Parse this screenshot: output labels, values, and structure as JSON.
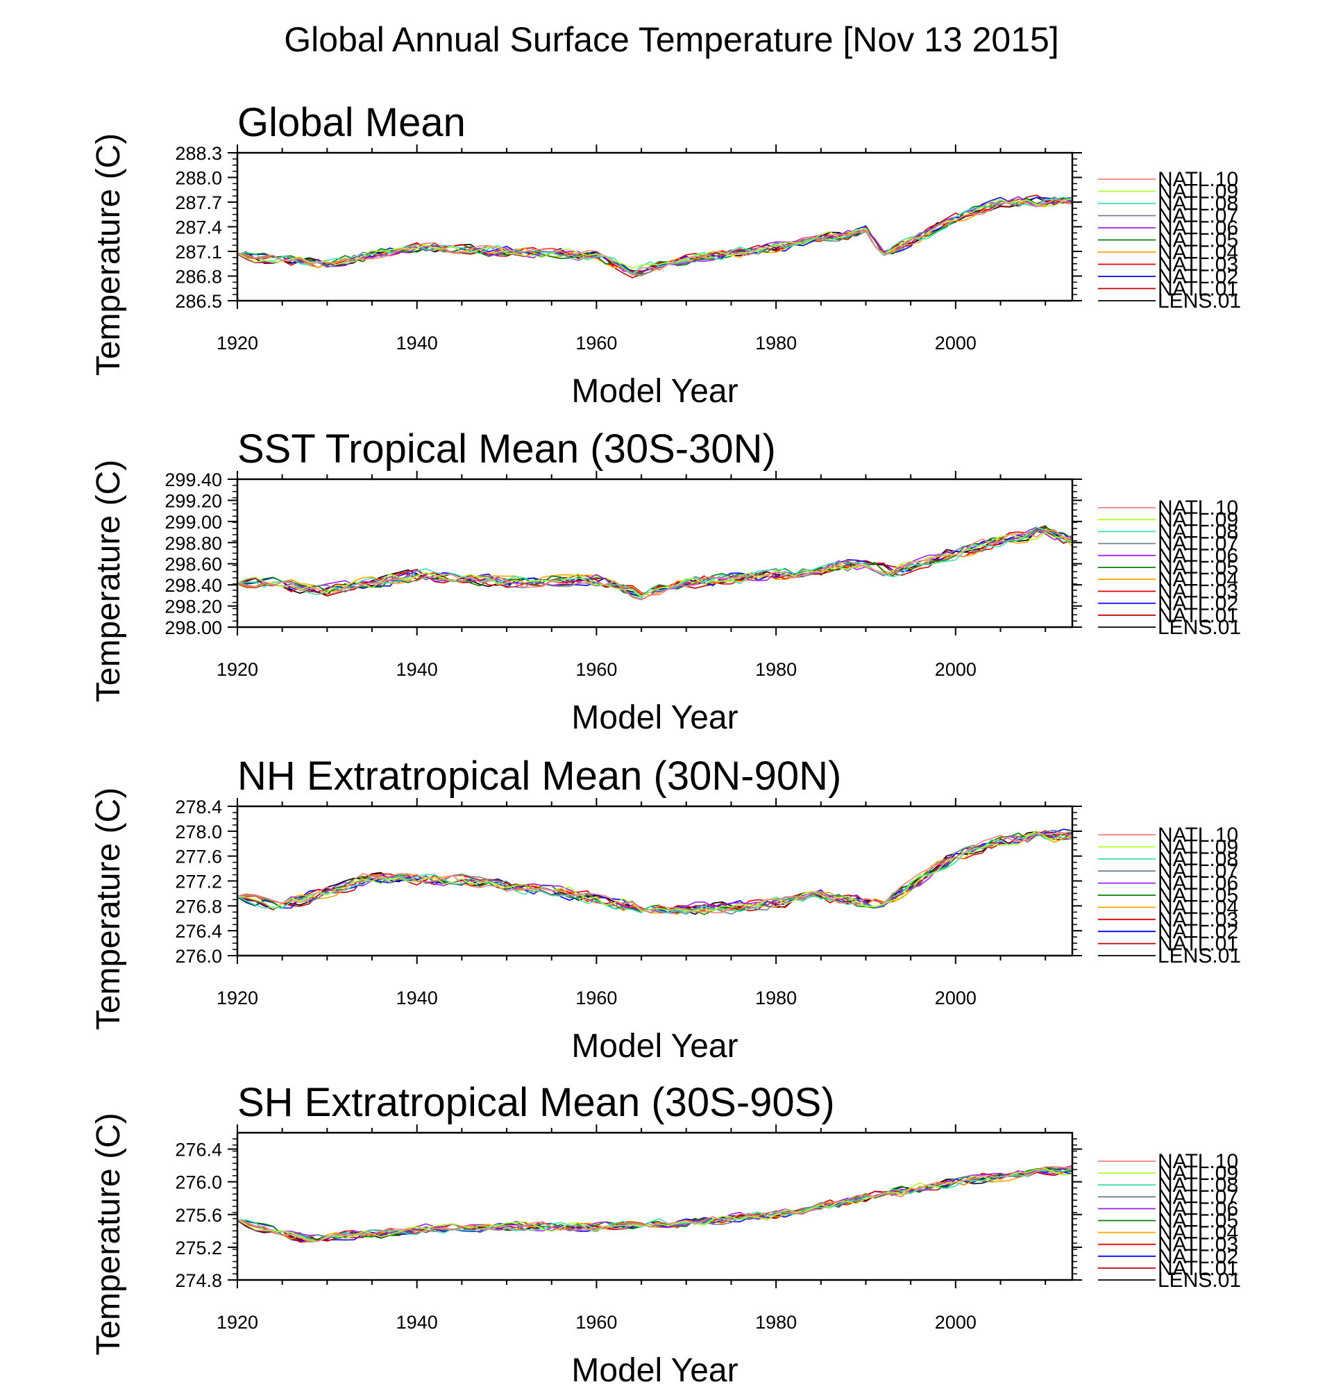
{
  "page": {
    "title": "Global Annual Surface Temperature [Nov 13 2015]"
  },
  "colors": {
    "LENS.01": "#000000",
    "NATL.01": "#c00000",
    "NATL.02": "#0000ff",
    "NATL.03": "#e00000",
    "NATL.04": "#ffa500",
    "NATL.05": "#008000",
    "NATL.06": "#a020f0",
    "NATL.07": "#708090",
    "NATL.08": "#40e0b0",
    "NATL.09": "#adff2f",
    "NATL.10": "#ff7f7f"
  },
  "chart_data": [
    {
      "type": "line",
      "title": "Global Mean",
      "xlabel": "Model Year",
      "ylabel": "Temperature (C)",
      "xlim": [
        1920,
        2013
      ],
      "ylim": [
        286.5,
        288.3
      ],
      "xticks": [
        "1920",
        "1940",
        "1960",
        "1980",
        "2000"
      ],
      "yticks": [
        "288.3",
        "288.0",
        "287.7",
        "287.4",
        "287.1",
        "286.8",
        "286.5"
      ],
      "legend": [
        "NATL.10",
        "NATL.09",
        "NATL.08",
        "NATL.07",
        "NATL.06",
        "NATL.05",
        "NATL.04",
        "NATL.03",
        "NATL.02",
        "NATL.01",
        "LENS.01"
      ],
      "anchors": {
        "x": [
          1920,
          1930,
          1940,
          1950,
          1960,
          1964,
          1970,
          1980,
          1990,
          1992,
          2000,
          2005,
          2013
        ],
        "y": [
          287.05,
          286.95,
          287.15,
          287.1,
          287.05,
          286.85,
          287.0,
          287.15,
          287.35,
          287.05,
          287.5,
          287.7,
          287.72
        ]
      },
      "amp": 0.09
    },
    {
      "type": "line",
      "title": "SST Tropical Mean (30S-30N)",
      "xlabel": "Model Year",
      "ylabel": "Temperature (C)",
      "xlim": [
        1920,
        2013
      ],
      "ylim": [
        298.0,
        299.4
      ],
      "xticks": [
        "1920",
        "1940",
        "1960",
        "1980",
        "2000"
      ],
      "yticks": [
        "299.40",
        "299.20",
        "299.00",
        "298.80",
        "298.60",
        "298.40",
        "298.20",
        "298.00"
      ],
      "legend": [
        "NATL.10",
        "NATL.09",
        "NATL.08",
        "NATL.07",
        "NATL.06",
        "NATL.05",
        "NATL.04",
        "NATL.03",
        "NATL.02",
        "NATL.01",
        "LENS.01"
      ],
      "anchors": {
        "x": [
          1920,
          1930,
          1940,
          1950,
          1960,
          1965,
          1970,
          1980,
          1990,
          1993,
          2000,
          2005,
          2010,
          2013
        ],
        "y": [
          298.45,
          298.35,
          298.5,
          298.42,
          298.45,
          298.32,
          298.42,
          298.5,
          298.6,
          298.52,
          298.7,
          298.82,
          298.9,
          298.82
        ]
      },
      "amp": 0.08
    },
    {
      "type": "line",
      "title": "NH Extratropical Mean (30N-90N)",
      "xlabel": "Model Year",
      "ylabel": "Temperature (C)",
      "xlim": [
        1920,
        2013
      ],
      "ylim": [
        276.0,
        278.4
      ],
      "xticks": [
        "1920",
        "1940",
        "1960",
        "1980",
        "2000"
      ],
      "yticks": [
        "278.4",
        "278.0",
        "277.6",
        "277.2",
        "276.8",
        "276.4",
        "276.0"
      ],
      "legend": [
        "NATL.10",
        "NATL.09",
        "NATL.08",
        "NATL.07",
        "NATL.06",
        "NATL.05",
        "NATL.04",
        "NATL.03",
        "NATL.02",
        "NATL.01",
        "LENS.01"
      ],
      "anchors": {
        "x": [
          1920,
          1925,
          1935,
          1945,
          1955,
          1965,
          1975,
          1985,
          1992,
          2000,
          2005,
          2013
        ],
        "y": [
          276.95,
          276.8,
          277.25,
          277.2,
          277.05,
          276.75,
          276.75,
          276.95,
          276.85,
          277.6,
          277.85,
          277.95
        ]
      },
      "amp": 0.14
    },
    {
      "type": "line",
      "title": "SH Extratropical Mean (30S-90S)",
      "xlabel": "Model Year",
      "ylabel": "Temperature (C)",
      "xlim": [
        1920,
        2013
      ],
      "ylim": [
        274.8,
        276.6
      ],
      "xticks": [
        "1920",
        "1940",
        "1960",
        "1980",
        "2000"
      ],
      "yticks": [
        "276.4",
        "276.0",
        "275.6",
        "275.2",
        "274.8"
      ],
      "legend": [
        "NATL.10",
        "NATL.09",
        "NATL.08",
        "NATL.07",
        "NATL.06",
        "NATL.05",
        "NATL.04",
        "NATL.03",
        "NATL.02",
        "NATL.01",
        "LENS.01"
      ],
      "anchors": {
        "x": [
          1920,
          1928,
          1940,
          1950,
          1960,
          1970,
          1980,
          1990,
          2000,
          2010,
          2013
        ],
        "y": [
          275.5,
          275.3,
          275.42,
          275.45,
          275.45,
          275.5,
          275.6,
          275.8,
          276.0,
          276.12,
          276.15
        ]
      },
      "amp": 0.08
    }
  ]
}
